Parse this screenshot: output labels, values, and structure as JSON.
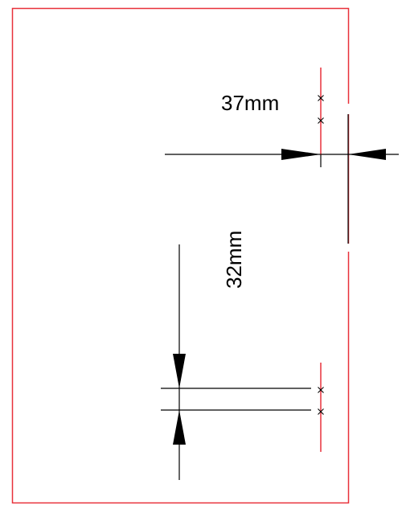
{
  "dimensions": {
    "horizontal": {
      "label": "37mm"
    },
    "vertical": {
      "label": "32mm"
    }
  },
  "colors": {
    "border": "#e8313a",
    "line": "#000000",
    "background": "#ffffff"
  }
}
